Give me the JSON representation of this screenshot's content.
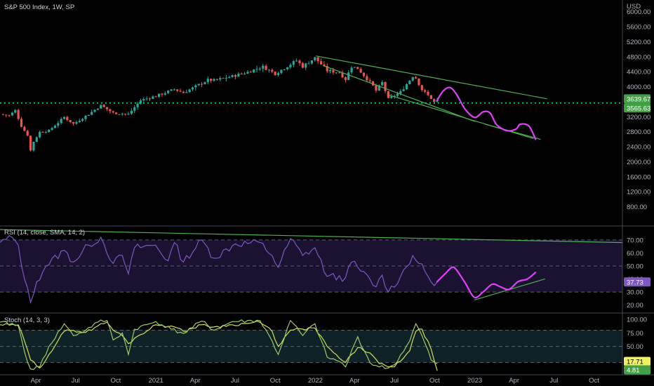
{
  "header": {
    "title": "S&P 500 Index, 1W, SP",
    "currency": "USD"
  },
  "colors": {
    "background": "#000000",
    "candle_up": "#26a69a",
    "candle_down": "#ef5350",
    "rsi_line": "#7e57c2",
    "rsi_band_fill": "#1a1230",
    "stoch_k": "#9ccc65",
    "stoch_d": "#d4e157",
    "stoch_band_fill": "#0e2228",
    "trendline": "#4caf50",
    "projection": "#e040fb",
    "level_line": "#00e676",
    "level_badge": "#43a047",
    "rsi_badge": "#7e57c2",
    "stoch_badge_k": "#f0f060",
    "stoch_badge_d": "#43a047"
  },
  "chart_data": [
    {
      "id": "price",
      "type": "candlestick",
      "title": "S&P 500 Index, 1W, SP",
      "y_unit": "USD",
      "y_range": [
        400,
        6200
      ],
      "y_ticks": [
        800,
        1200,
        1600,
        2000,
        2400,
        2800,
        3200,
        3600,
        4000,
        4400,
        4800,
        5200,
        5600,
        6000
      ],
      "y_tick_labels": [
        "800.00",
        "1200.00",
        "1600.00",
        "2000.00",
        "2400.00",
        "2800.00",
        "3200.00",
        "3600.00",
        "4000.00",
        "4400.00",
        "4800.00",
        "5200.00",
        "5600.00",
        "6000.00"
      ],
      "x_range": [
        "2020-01-10",
        "2023-12-05"
      ],
      "x_ticks": [
        "2020-04-01",
        "2020-07-01",
        "2020-10-01",
        "2021-01-01",
        "2021-04-01",
        "2021-07-01",
        "2021-10-01",
        "2022-01-01",
        "2022-04-01",
        "2022-07-01",
        "2022-10-01",
        "2023-01-01",
        "2023-04-01",
        "2023-07-01",
        "2023-10-01"
      ],
      "x_tick_labels": [
        "Apr",
        "Jul",
        "Oct",
        "2021",
        "Apr",
        "Jul",
        "Oct",
        "2022",
        "Apr",
        "Jul",
        "Oct",
        "2023",
        "Apr",
        "Jul",
        "Oct"
      ],
      "price_path": [
        [
          "2020-01-10",
          3270
        ],
        [
          "2020-01-31",
          3230
        ],
        [
          "2020-02-14",
          3370
        ],
        [
          "2020-02-28",
          2950
        ],
        [
          "2020-03-13",
          2710
        ],
        [
          "2020-03-20",
          2300
        ],
        [
          "2020-03-27",
          2540
        ],
        [
          "2020-04-10",
          2790
        ],
        [
          "2020-05-01",
          2830
        ],
        [
          "2020-06-05",
          3190
        ],
        [
          "2020-06-26",
          3010
        ],
        [
          "2020-07-31",
          3270
        ],
        [
          "2020-08-28",
          3500
        ],
        [
          "2020-09-25",
          3300
        ],
        [
          "2020-10-30",
          3270
        ],
        [
          "2020-11-27",
          3640
        ],
        [
          "2020-12-31",
          3750
        ],
        [
          "2021-02-12",
          3930
        ],
        [
          "2021-03-05",
          3840
        ],
        [
          "2021-04-30",
          4180
        ],
        [
          "2021-05-14",
          4170
        ],
        [
          "2021-06-25",
          4280
        ],
        [
          "2021-07-30",
          4390
        ],
        [
          "2021-08-27",
          4510
        ],
        [
          "2021-09-03",
          4530
        ],
        [
          "2021-10-01",
          4350
        ],
        [
          "2021-11-19",
          4700
        ],
        [
          "2021-12-03",
          4540
        ],
        [
          "2021-12-31",
          4770
        ],
        [
          "2022-01-28",
          4430
        ],
        [
          "2022-02-25",
          4380
        ],
        [
          "2022-03-11",
          4200
        ],
        [
          "2022-03-25",
          4540
        ],
        [
          "2022-04-08",
          4490
        ],
        [
          "2022-05-13",
          4020
        ],
        [
          "2022-05-20",
          3900
        ],
        [
          "2022-06-03",
          4110
        ],
        [
          "2022-06-17",
          3670
        ],
        [
          "2022-07-15",
          3860
        ],
        [
          "2022-08-12",
          4280
        ],
        [
          "2022-08-19",
          4230
        ],
        [
          "2022-09-02",
          3920
        ],
        [
          "2022-09-23",
          3690
        ],
        [
          "2022-09-30",
          3590
        ],
        [
          "2022-10-07",
          3639.67
        ]
      ],
      "last_close": 3639.67,
      "last_close_label": "3639.67",
      "level": 3565.63,
      "level_label": "3565.63",
      "trendlines": [
        {
          "name": "upper-channel",
          "points": [
            [
              "2022-01-03",
              4820
            ],
            [
              "2023-06-15",
              3680
            ]
          ]
        },
        {
          "name": "middle-channel",
          "points": [
            [
              "2022-01-20",
              4560
            ],
            [
              "2022-12-31",
              3080
            ]
          ]
        },
        {
          "name": "lower-channel",
          "points": [
            [
              "2022-06-15",
              3790
            ],
            [
              "2023-05-15",
              2620
            ]
          ]
        },
        {
          "name": "lower-channel-extension",
          "points": [
            [
              "2023-01-25",
              3000
            ],
            [
              "2023-05-31",
              2600
            ]
          ]
        }
      ],
      "projection_path": [
        [
          "2022-10-07",
          3640
        ],
        [
          "2022-10-20",
          3880
        ],
        [
          "2022-11-05",
          3980
        ],
        [
          "2022-11-20",
          3800
        ],
        [
          "2022-12-10",
          3400
        ],
        [
          "2023-01-01",
          3180
        ],
        [
          "2023-01-20",
          3330
        ],
        [
          "2023-02-05",
          3300
        ],
        [
          "2023-02-20",
          2990
        ],
        [
          "2023-03-15",
          2830
        ],
        [
          "2023-04-05",
          2870
        ],
        [
          "2023-04-15",
          3000
        ],
        [
          "2023-05-05",
          2950
        ],
        [
          "2023-05-20",
          2600
        ]
      ]
    },
    {
      "id": "rsi",
      "type": "line",
      "title": "RSI (14, close, SMA, 14, 2)",
      "y_range": [
        15,
        78
      ],
      "y_ticks": [
        20,
        30,
        40,
        50,
        60,
        70
      ],
      "y_tick_labels": [
        "20.00",
        "30.00",
        "40.00",
        "50.00",
        "60.00",
        "70.00"
      ],
      "bands": [
        30,
        50,
        70
      ],
      "last_value": 37.73,
      "last_value_label": "37.73",
      "rsi_path": [
        [
          "2020-01-10",
          68
        ],
        [
          "2020-02-07",
          72
        ],
        [
          "2020-02-21",
          66
        ],
        [
          "2020-03-06",
          40
        ],
        [
          "2020-03-20",
          22
        ],
        [
          "2020-04-03",
          38
        ],
        [
          "2020-04-24",
          50
        ],
        [
          "2020-06-05",
          62
        ],
        [
          "2020-06-26",
          53
        ],
        [
          "2020-07-31",
          66
        ],
        [
          "2020-08-28",
          72
        ],
        [
          "2020-09-25",
          52
        ],
        [
          "2020-10-16",
          58
        ],
        [
          "2020-10-30",
          44
        ],
        [
          "2020-11-13",
          64
        ],
        [
          "2020-12-31",
          66
        ],
        [
          "2021-01-29",
          54
        ],
        [
          "2021-02-12",
          68
        ],
        [
          "2021-03-05",
          53
        ],
        [
          "2021-04-16",
          70
        ],
        [
          "2021-05-14",
          56
        ],
        [
          "2021-07-02",
          67
        ],
        [
          "2021-08-27",
          68
        ],
        [
          "2021-09-24",
          58
        ],
        [
          "2021-10-08",
          49
        ],
        [
          "2021-11-05",
          71
        ],
        [
          "2021-12-03",
          58
        ],
        [
          "2021-12-31",
          64
        ],
        [
          "2022-01-28",
          42
        ],
        [
          "2022-03-11",
          41
        ],
        [
          "2022-03-25",
          53
        ],
        [
          "2022-04-08",
          49
        ],
        [
          "2022-05-20",
          34
        ],
        [
          "2022-06-03",
          43
        ],
        [
          "2022-06-17",
          30
        ],
        [
          "2022-07-15",
          42
        ],
        [
          "2022-08-12",
          58
        ],
        [
          "2022-08-26",
          52
        ],
        [
          "2022-09-16",
          42
        ],
        [
          "2022-09-30",
          35
        ],
        [
          "2022-10-07",
          37.73
        ]
      ],
      "trendlines": [
        {
          "name": "rsi-resistance",
          "points": [
            [
              "2019-12-30",
              78
            ],
            [
              "2023-12-05",
              68
            ]
          ]
        },
        {
          "name": "rsi-support",
          "points": [
            [
              "2023-01-01",
              24
            ],
            [
              "2023-06-10",
              40
            ]
          ]
        }
      ],
      "projection_path": [
        [
          "2022-10-07",
          38
        ],
        [
          "2022-10-25",
          44
        ],
        [
          "2022-11-10",
          49
        ],
        [
          "2022-11-20",
          47
        ],
        [
          "2022-12-10",
          37
        ],
        [
          "2022-12-31",
          26
        ],
        [
          "2023-01-20",
          30
        ],
        [
          "2023-02-10",
          36
        ],
        [
          "2023-03-01",
          34
        ],
        [
          "2023-03-20",
          32
        ],
        [
          "2023-04-10",
          38
        ],
        [
          "2023-05-01",
          40
        ],
        [
          "2023-05-20",
          45
        ]
      ]
    },
    {
      "id": "stoch",
      "type": "line",
      "title": "Stoch (14, 3, 3)",
      "y_range": [
        0,
        108
      ],
      "y_ticks": [
        25,
        50,
        75,
        100
      ],
      "y_tick_labels": [
        "25.00",
        "50.00",
        "75.00",
        "100.00"
      ],
      "bands": [
        20,
        50,
        80
      ],
      "series": [
        {
          "name": "%K",
          "last_value": 17.71,
          "last_value_label": "17.71",
          "points": [
            [
              "2020-01-10",
              95
            ],
            [
              "2020-02-21",
              88
            ],
            [
              "2020-03-06",
              40
            ],
            [
              "2020-03-20",
              8
            ],
            [
              "2020-04-10",
              12
            ],
            [
              "2020-05-01",
              50
            ],
            [
              "2020-06-05",
              92
            ],
            [
              "2020-06-26",
              70
            ],
            [
              "2020-07-24",
              80
            ],
            [
              "2020-08-21",
              95
            ],
            [
              "2020-09-11",
              98
            ],
            [
              "2020-09-25",
              62
            ],
            [
              "2020-10-16",
              75
            ],
            [
              "2020-10-30",
              35
            ],
            [
              "2020-11-13",
              82
            ],
            [
              "2021-01-01",
              96
            ],
            [
              "2021-02-05",
              82
            ],
            [
              "2021-03-05",
              74
            ],
            [
              "2021-04-16",
              97
            ],
            [
              "2021-05-14",
              80
            ],
            [
              "2021-06-25",
              96
            ],
            [
              "2021-08-27",
              98
            ],
            [
              "2021-09-24",
              60
            ],
            [
              "2021-10-08",
              35
            ],
            [
              "2021-11-05",
              98
            ],
            [
              "2021-12-03",
              70
            ],
            [
              "2021-12-31",
              92
            ],
            [
              "2022-01-28",
              30
            ],
            [
              "2022-02-25",
              22
            ],
            [
              "2022-03-11",
              12
            ],
            [
              "2022-04-08",
              68
            ],
            [
              "2022-05-06",
              20
            ],
            [
              "2022-05-27",
              12
            ],
            [
              "2022-06-17",
              10
            ],
            [
              "2022-07-01",
              16
            ],
            [
              "2022-08-05",
              60
            ],
            [
              "2022-08-19",
              92
            ],
            [
              "2022-09-02",
              70
            ],
            [
              "2022-09-23",
              25
            ],
            [
              "2022-10-07",
              17.71
            ]
          ]
        },
        {
          "name": "%D",
          "last_value": 4.81,
          "last_value_label": "4.81",
          "points": [
            [
              "2020-01-10",
              90
            ],
            [
              "2020-02-21",
              90
            ],
            [
              "2020-03-06",
              60
            ],
            [
              "2020-03-20",
              25
            ],
            [
              "2020-04-10",
              10
            ],
            [
              "2020-05-01",
              35
            ],
            [
              "2020-06-05",
              78
            ],
            [
              "2020-06-26",
              80
            ],
            [
              "2020-07-24",
              76
            ],
            [
              "2020-08-21",
              88
            ],
            [
              "2020-09-11",
              95
            ],
            [
              "2020-09-25",
              80
            ],
            [
              "2020-10-16",
              70
            ],
            [
              "2020-10-30",
              55
            ],
            [
              "2020-11-13",
              65
            ],
            [
              "2021-01-01",
              90
            ],
            [
              "2021-02-05",
              88
            ],
            [
              "2021-03-05",
              78
            ],
            [
              "2021-04-16",
              90
            ],
            [
              "2021-05-14",
              86
            ],
            [
              "2021-06-25",
              90
            ],
            [
              "2021-08-27",
              95
            ],
            [
              "2021-09-24",
              78
            ],
            [
              "2021-10-08",
              50
            ],
            [
              "2021-11-05",
              80
            ],
            [
              "2021-12-03",
              82
            ],
            [
              "2021-12-31",
              84
            ],
            [
              "2022-01-28",
              50
            ],
            [
              "2022-02-25",
              28
            ],
            [
              "2022-03-11",
              20
            ],
            [
              "2022-04-08",
              48
            ],
            [
              "2022-05-06",
              38
            ],
            [
              "2022-05-27",
              18
            ],
            [
              "2022-06-17",
              12
            ],
            [
              "2022-07-01",
              12
            ],
            [
              "2022-08-05",
              42
            ],
            [
              "2022-08-19",
              78
            ],
            [
              "2022-09-02",
              82
            ],
            [
              "2022-09-23",
              45
            ],
            [
              "2022-10-07",
              4.81
            ]
          ]
        }
      ]
    }
  ]
}
